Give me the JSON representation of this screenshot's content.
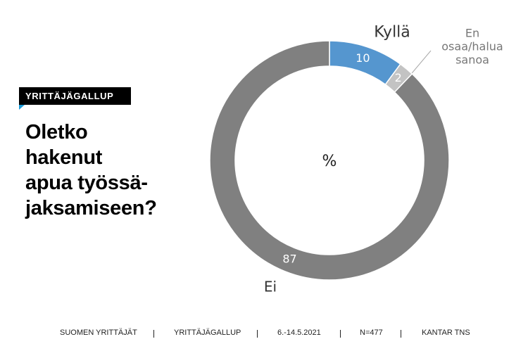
{
  "chart_data": {
    "type": "donut",
    "badge": "YRITTÄJÄGALLUP",
    "title": [
      "Oletko",
      "hakenut",
      "apua työssä-",
      "jaksamiseen?"
    ],
    "center_label": "%",
    "categories": [
      "Kyllä",
      "En osaa/halua sanoa",
      "Ei"
    ],
    "values": [
      10,
      2,
      87
    ],
    "colors": [
      "#5596cf",
      "#c3c3c3",
      "#808080"
    ]
  },
  "footer": [
    "SUOMEN YRITTÄJÄT",
    "YRITTÄJÄGALLUP",
    "6.-14.5.2021",
    "N=477",
    "KANTAR TNS"
  ]
}
